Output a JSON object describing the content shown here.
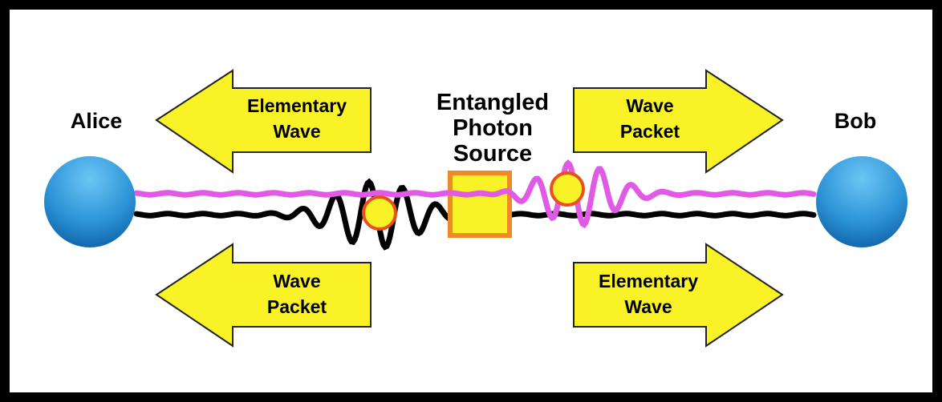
{
  "people": {
    "left": "Alice",
    "right": "Bob"
  },
  "source": {
    "lines": [
      "Entangled",
      "Photon",
      "Source"
    ]
  },
  "arrows": [
    {
      "lines": [
        "Elementary",
        "Wave"
      ]
    },
    {
      "lines": [
        "Wave",
        "Packet"
      ]
    },
    {
      "lines": [
        "Wave",
        "Packet"
      ]
    },
    {
      "lines": [
        "Elementary",
        "Wave"
      ]
    }
  ]
}
